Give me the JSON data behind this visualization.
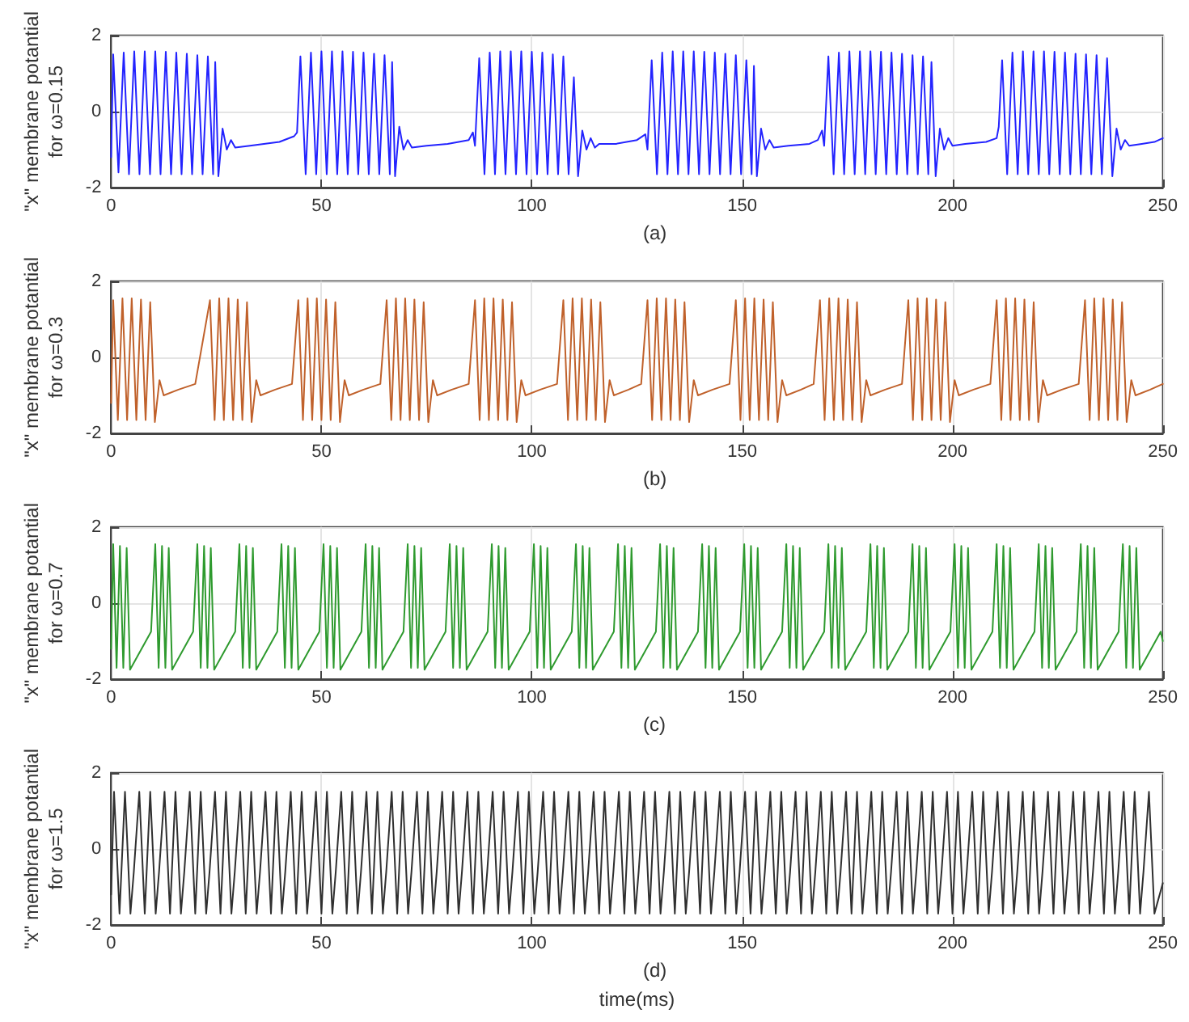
{
  "chart_data": [
    {
      "type": "line",
      "ylabel": "\"x\" membrane potantial\nfor ω=0.15",
      "annotations": [
        "(a)"
      ],
      "color": "#2323ff",
      "xlim": [
        0,
        250
      ],
      "ylim": [
        -2,
        2
      ],
      "xticks": [
        0,
        50,
        100,
        150,
        200,
        250
      ],
      "yticks": [
        -2,
        0,
        2
      ],
      "grid": true,
      "x": [
        0,
        0.5,
        1.75,
        3,
        4.25,
        5.5,
        6.75,
        8,
        9.25,
        10.5,
        11.75,
        13,
        14.25,
        15.5,
        16.75,
        18,
        19.25,
        20.5,
        21.75,
        23,
        24.25,
        24.75,
        25.5,
        26.5,
        27.5,
        28.5,
        29.5,
        33,
        40,
        43.5,
        44.2,
        45,
        46.25,
        47.5,
        48.75,
        50,
        51.25,
        52.5,
        53.75,
        55,
        56.25,
        57.5,
        58.75,
        60,
        61.25,
        62.5,
        63.75,
        65,
        66.25,
        66.8,
        67.5,
        68.5,
        69.5,
        70.5,
        71.5,
        75,
        80,
        85,
        86,
        86.5,
        87.5,
        88.75,
        90,
        91.25,
        92.5,
        93.75,
        95,
        96.25,
        97.5,
        98.75,
        100,
        101.25,
        102.5,
        103.75,
        105,
        106.25,
        107.5,
        108.75,
        110,
        111,
        112,
        113,
        114,
        115,
        116,
        120,
        125,
        127,
        127.5,
        128.5,
        129.75,
        131,
        132.25,
        133.5,
        134.75,
        136,
        137.25,
        138.5,
        139.75,
        141,
        142.25,
        143.5,
        144.75,
        146,
        147.25,
        148.5,
        149.75,
        151,
        152.25,
        152.8,
        153.5,
        154.5,
        155.5,
        156.5,
        157.5,
        161,
        166,
        168,
        169,
        169.5,
        170.5,
        171.75,
        173,
        174.25,
        175.5,
        176.75,
        178,
        179.25,
        180.5,
        181.75,
        183,
        184.25,
        185.5,
        186.75,
        188,
        189.25,
        190.5,
        191.75,
        193,
        194.25,
        195,
        196,
        197,
        198,
        199,
        200,
        203,
        208,
        210.5,
        211,
        211.8,
        213,
        214.25,
        215.5,
        216.75,
        218,
        219.25,
        220.5,
        221.75,
        223,
        224.25,
        225.5,
        226.75,
        228,
        229.25,
        230.5,
        231.75,
        233,
        234.25,
        235.5,
        236.75,
        238,
        239,
        240,
        241,
        242,
        245,
        248,
        250
      ],
      "values": [
        -1.2,
        1.5,
        -1.6,
        1.55,
        -1.65,
        1.58,
        -1.65,
        1.58,
        -1.65,
        1.58,
        -1.65,
        1.57,
        -1.65,
        1.55,
        -1.65,
        1.52,
        -1.65,
        1.48,
        -1.65,
        1.45,
        -1.65,
        1.3,
        -1.7,
        -0.45,
        -1.0,
        -0.75,
        -0.95,
        -0.9,
        -0.8,
        -0.65,
        -0.55,
        1.45,
        -1.65,
        1.55,
        -1.65,
        1.58,
        -1.65,
        1.58,
        -1.65,
        1.58,
        -1.65,
        1.57,
        -1.65,
        1.55,
        -1.65,
        1.52,
        -1.65,
        1.48,
        -1.65,
        1.3,
        -1.7,
        -0.4,
        -1.0,
        -0.75,
        -0.95,
        -0.9,
        -0.85,
        -0.75,
        -0.55,
        -0.9,
        1.4,
        -1.65,
        1.55,
        -1.65,
        1.58,
        -1.65,
        1.58,
        -1.65,
        1.58,
        -1.65,
        1.57,
        -1.65,
        1.55,
        -1.65,
        1.5,
        -1.65,
        1.45,
        -1.65,
        0.9,
        -1.7,
        -0.5,
        -1.0,
        -0.7,
        -0.95,
        -0.85,
        -0.85,
        -0.75,
        -0.6,
        -1.0,
        1.35,
        -1.65,
        1.55,
        -1.65,
        1.58,
        -1.65,
        1.58,
        -1.65,
        1.58,
        -1.65,
        1.57,
        -1.65,
        1.55,
        -1.65,
        1.52,
        -1.65,
        1.48,
        -1.65,
        1.35,
        -1.65,
        1.2,
        -1.7,
        -0.45,
        -1.0,
        -0.75,
        -0.95,
        -0.9,
        -0.85,
        -0.75,
        -0.5,
        -0.9,
        1.45,
        -1.65,
        1.55,
        -1.65,
        1.58,
        -1.65,
        1.58,
        -1.65,
        1.58,
        -1.65,
        1.57,
        -1.65,
        1.55,
        -1.65,
        1.52,
        -1.65,
        1.48,
        -1.65,
        1.45,
        -1.65,
        1.3,
        -1.7,
        -0.45,
        -1.0,
        -0.7,
        -0.9,
        -0.85,
        -0.8,
        -0.7,
        -0.4,
        1.35,
        -1.65,
        1.55,
        -1.65,
        1.58,
        -1.65,
        1.58,
        -1.65,
        1.58,
        -1.65,
        1.57,
        -1.65,
        1.55,
        -1.65,
        1.52,
        -1.65,
        1.5,
        -1.65,
        1.48,
        -1.65,
        1.4,
        -1.7,
        -0.45,
        -1.0,
        -0.75,
        -0.9,
        -0.85,
        -0.8,
        -0.7
      ]
    },
    {
      "type": "line",
      "ylabel": "\"x\" membrane potantial\nfor ω=0.3",
      "annotations": [
        "(b)"
      ],
      "color": "#c0612b",
      "xlim": [
        0,
        250
      ],
      "ylim": [
        -2,
        2
      ],
      "xticks": [
        0,
        50,
        100,
        150,
        200,
        250
      ],
      "yticks": [
        -2,
        0,
        2
      ],
      "grid": true,
      "x": [
        0,
        0.5,
        1.6,
        2.7,
        3.8,
        4.9,
        6,
        7.1,
        8.2,
        9.3,
        10.4,
        11.5,
        12.5,
        16,
        20,
        23.5,
        24.6,
        25.7,
        26.8,
        27.9,
        29,
        30.1,
        31.2,
        32.3,
        33.4,
        34.5,
        35.5,
        39,
        43,
        44.5,
        45.6,
        46.7,
        47.8,
        48.9,
        50,
        51.1,
        52.2,
        53.3,
        54.4,
        55.5,
        56.5,
        60,
        64,
        65.5,
        66.6,
        67.7,
        68.8,
        69.9,
        71,
        72.1,
        73.2,
        74.3,
        75.4,
        76.5,
        77.5,
        81,
        85,
        86.5,
        87.6,
        88.7,
        89.8,
        90.9,
        92,
        93.1,
        94.2,
        95.3,
        96.4,
        97.5,
        98.5,
        102,
        106,
        107.5,
        108.6,
        109.7,
        110.8,
        111.9,
        113,
        114.1,
        115.2,
        116.3,
        117.4,
        118.5,
        119.5,
        123,
        126,
        127.5,
        128.6,
        129.7,
        130.8,
        131.9,
        133,
        134.1,
        135.2,
        136.3,
        137.4,
        138.5,
        139.5,
        143,
        147,
        148.5,
        149.6,
        150.7,
        151.8,
        152.9,
        154,
        155.1,
        156.2,
        157.3,
        158.4,
        159.5,
        160.5,
        164,
        167,
        168.5,
        169.6,
        170.7,
        171.8,
        172.9,
        174,
        175.1,
        176.2,
        177.3,
        178.4,
        179.5,
        180.5,
        184,
        188,
        189.5,
        190.6,
        191.7,
        192.8,
        193.9,
        195,
        196.1,
        197.2,
        198.3,
        199.4,
        200.5,
        201.5,
        205,
        209,
        210.5,
        211.6,
        212.7,
        213.8,
        214.9,
        216,
        217.1,
        218.2,
        219.3,
        220.4,
        221.5,
        222.5,
        226,
        230,
        231.5,
        232.6,
        233.7,
        234.8,
        235.9,
        237,
        238.1,
        239.2,
        240.3,
        241.4,
        242.5,
        243.5,
        247,
        250
      ],
      "values": [
        -1.2,
        1.5,
        -1.65,
        1.55,
        -1.65,
        1.55,
        -1.65,
        1.52,
        -1.65,
        1.45,
        -1.7,
        -0.6,
        -1.0,
        -0.85,
        -0.7,
        1.5,
        -1.65,
        1.55,
        -1.65,
        1.55,
        -1.65,
        1.52,
        -1.65,
        1.45,
        -1.7,
        -0.6,
        -1.0,
        -0.85,
        -0.7,
        1.5,
        -1.65,
        1.55,
        -1.65,
        1.55,
        -1.65,
        1.52,
        -1.65,
        1.45,
        -1.7,
        -0.6,
        -1.0,
        -0.85,
        -0.7,
        1.5,
        -1.65,
        1.55,
        -1.65,
        1.55,
        -1.65,
        1.52,
        -1.65,
        1.45,
        -1.7,
        -0.6,
        -1.0,
        -0.85,
        -0.7,
        1.5,
        -1.65,
        1.55,
        -1.65,
        1.55,
        -1.65,
        1.52,
        -1.65,
        1.45,
        -1.7,
        -0.6,
        -1.0,
        -0.85,
        -0.7,
        1.5,
        -1.65,
        1.55,
        -1.65,
        1.55,
        -1.65,
        1.52,
        -1.65,
        1.45,
        -1.7,
        -0.6,
        -1.0,
        -0.85,
        -0.7,
        1.5,
        -1.65,
        1.55,
        -1.65,
        1.55,
        -1.65,
        1.52,
        -1.65,
        1.45,
        -1.7,
        -0.6,
        -1.0,
        -0.85,
        -0.7,
        1.5,
        -1.65,
        1.55,
        -1.65,
        1.55,
        -1.65,
        1.52,
        -1.65,
        1.45,
        -1.7,
        -0.6,
        -1.0,
        -0.85,
        -0.7,
        1.5,
        -1.65,
        1.55,
        -1.65,
        1.55,
        -1.65,
        1.52,
        -1.65,
        1.45,
        -1.7,
        -0.6,
        -1.0,
        -0.85,
        -0.7,
        1.5,
        -1.65,
        1.55,
        -1.65,
        1.55,
        -1.65,
        1.52,
        -1.65,
        1.45,
        -1.7,
        -0.6,
        -1.0,
        -0.85,
        -0.7,
        1.5,
        -1.65,
        1.55,
        -1.65,
        1.55,
        -1.65,
        1.52,
        -1.65,
        1.45,
        -1.7,
        -0.6,
        -1.0,
        -0.85,
        -0.7,
        1.5,
        -1.65,
        1.55,
        -1.65,
        1.55,
        -1.65,
        1.52,
        -1.65,
        1.45,
        -1.7,
        -0.6,
        -1.0,
        -0.85,
        -0.7
      ]
    },
    {
      "type": "line",
      "ylabel": "\"x\" membrane potantial\nfor ω=0.7",
      "annotations": [
        "(c)"
      ],
      "color": "#2e9a2e",
      "xlim": [
        0,
        250
      ],
      "ylim": [
        -2,
        2
      ],
      "xticks": [
        0,
        50,
        100,
        150,
        200,
        250
      ],
      "yticks": [
        -2,
        0,
        2
      ],
      "grid": true,
      "x": [
        0,
        0.5,
        1.3,
        2.1,
        2.9,
        3.7,
        4.5,
        9.5,
        10.5,
        11.3,
        12.1,
        12.9,
        13.7,
        14.5,
        19.5,
        20.5,
        21.3,
        22.1,
        22.9,
        23.7,
        24.5,
        29.5,
        30.5,
        31.3,
        32.1,
        32.9,
        33.7,
        34.5,
        39.5,
        40.5,
        41.3,
        42.1,
        42.9,
        43.7,
        44.5,
        49.5,
        50.5,
        51.3,
        52.1,
        52.9,
        53.7,
        54.5,
        59.5,
        60.5,
        61.3,
        62.1,
        62.9,
        63.7,
        64.5,
        69.5,
        70.5,
        71.3,
        72.1,
        72.9,
        73.7,
        74.5,
        79.5,
        80.5,
        81.3,
        82.1,
        82.9,
        83.7,
        84.5,
        89.5,
        90.5,
        91.3,
        92.1,
        92.9,
        93.7,
        94.5,
        99.5,
        100.5,
        101.3,
        102.1,
        102.9,
        103.7,
        104.5,
        109.5,
        110.5,
        111.3,
        112.1,
        112.9,
        113.7,
        114.5,
        119.5,
        120.5,
        121.3,
        122.1,
        122.9,
        123.7,
        124.5,
        129.5,
        130.5,
        131.3,
        132.1,
        132.9,
        133.7,
        134.5,
        139.5,
        140.5,
        141.3,
        142.1,
        142.9,
        143.7,
        144.5,
        149.5,
        150.5,
        151.3,
        152.1,
        152.9,
        153.7,
        154.5,
        159.5,
        160.5,
        161.3,
        162.1,
        162.9,
        163.7,
        164.5,
        169.5,
        170.5,
        171.3,
        172.1,
        172.9,
        173.7,
        174.5,
        179.5,
        180.5,
        181.3,
        182.1,
        182.9,
        183.7,
        184.5,
        189.5,
        190.5,
        191.3,
        192.1,
        192.9,
        193.7,
        194.5,
        199.5,
        200.5,
        201.3,
        202.1,
        202.9,
        203.7,
        204.5,
        209.5,
        210.5,
        211.3,
        212.1,
        212.9,
        213.7,
        214.5,
        219.5,
        220.5,
        221.3,
        222.1,
        222.9,
        223.7,
        224.5,
        229.5,
        230.5,
        231.3,
        232.1,
        232.9,
        233.7,
        234.5,
        239.5,
        240.5,
        241.3,
        242.1,
        242.9,
        243.7,
        244.5,
        249.5,
        250
      ],
      "values": [
        -1.2,
        1.55,
        -1.7,
        1.5,
        -1.7,
        1.45,
        -1.75,
        -0.75,
        1.55,
        -1.7,
        1.5,
        -1.7,
        1.45,
        -1.75,
        -0.75,
        1.55,
        -1.7,
        1.5,
        -1.7,
        1.45,
        -1.75,
        -0.75,
        1.55,
        -1.7,
        1.5,
        -1.7,
        1.45,
        -1.75,
        -0.75,
        1.55,
        -1.7,
        1.5,
        -1.7,
        1.45,
        -1.75,
        -0.75,
        1.55,
        -1.7,
        1.5,
        -1.7,
        1.45,
        -1.75,
        -0.75,
        1.55,
        -1.7,
        1.5,
        -1.7,
        1.45,
        -1.75,
        -0.75,
        1.55,
        -1.7,
        1.5,
        -1.7,
        1.45,
        -1.75,
        -0.75,
        1.55,
        -1.7,
        1.5,
        -1.7,
        1.45,
        -1.75,
        -0.75,
        1.55,
        -1.7,
        1.5,
        -1.7,
        1.45,
        -1.75,
        -0.75,
        1.55,
        -1.7,
        1.5,
        -1.7,
        1.45,
        -1.75,
        -0.75,
        1.55,
        -1.7,
        1.5,
        -1.7,
        1.45,
        -1.75,
        -0.75,
        1.55,
        -1.7,
        1.5,
        -1.7,
        1.45,
        -1.75,
        -0.75,
        1.55,
        -1.7,
        1.5,
        -1.7,
        1.45,
        -1.75,
        -0.75,
        1.55,
        -1.7,
        1.5,
        -1.7,
        1.45,
        -1.75,
        -0.75,
        1.55,
        -1.7,
        1.5,
        -1.7,
        1.45,
        -1.75,
        -0.75,
        1.55,
        -1.7,
        1.5,
        -1.7,
        1.45,
        -1.75,
        -0.75,
        1.55,
        -1.7,
        1.5,
        -1.7,
        1.45,
        -1.75,
        -0.75,
        1.55,
        -1.7,
        1.5,
        -1.7,
        1.45,
        -1.75,
        -0.75,
        1.55,
        -1.7,
        1.5,
        -1.7,
        1.45,
        -1.75,
        -0.75,
        1.55,
        -1.7,
        1.5,
        -1.7,
        1.45,
        -1.75,
        -0.75,
        1.55,
        -1.7,
        1.5,
        -1.7,
        1.45,
        -1.75,
        -0.75,
        1.55,
        -1.7,
        1.5,
        -1.7,
        1.45,
        -1.75,
        -0.75,
        1.55,
        -1.7,
        1.5,
        -1.7,
        1.45,
        -1.75,
        -0.75,
        1.55,
        -1.7,
        1.5,
        -1.7,
        1.45,
        -1.75,
        -0.75,
        -1.0
      ]
    },
    {
      "type": "line",
      "xlabel": "time(ms)",
      "ylabel": "\"x\" membrane potantial\nfor ω=1.5",
      "annotations": [
        "(d)"
      ],
      "color": "#303030",
      "xlim": [
        0,
        250
      ],
      "ylim": [
        -2,
        2
      ],
      "xticks": [
        0,
        50,
        100,
        150,
        200,
        250
      ],
      "yticks": [
        -2,
        0,
        2
      ],
      "grid": true,
      "x": [
        0,
        0.7,
        2,
        3.3,
        4.6,
        5.4,
        6.7,
        8,
        9.3,
        10.6,
        11.4,
        12.7,
        14,
        15.3,
        16.6,
        17.4,
        18.7,
        20,
        21.3,
        22.6,
        23.4,
        24.7,
        26,
        27.3,
        28.6,
        29.4,
        30.7,
        32,
        33.3,
        34.6,
        35.4,
        36.7,
        38,
        39.3,
        40.6,
        41.4,
        42.7,
        44,
        45.3,
        46.6,
        47.4,
        48.7,
        50,
        51.3,
        52.6,
        53.4,
        54.7,
        56,
        57.3,
        58.6,
        59.4,
        60.7,
        62,
        63.3,
        64.6,
        65.4,
        66.7,
        68,
        69.3,
        70.6,
        71.4,
        72.7,
        74,
        75.3,
        76.6,
        77.4,
        78.7,
        80,
        81.3,
        82.6,
        83.4,
        84.7,
        86,
        87.3,
        88.6,
        89.4,
        90.7,
        92,
        93.3,
        94.6,
        95.4,
        96.7,
        98,
        99.3,
        100.6,
        101.4,
        102.7,
        104,
        105.3,
        106.6,
        107.4,
        108.7,
        110,
        111.3,
        112.6,
        113.4,
        114.7,
        116,
        117.3,
        118.6,
        119.4,
        120.7,
        122,
        123.3,
        124.6,
        125.4,
        126.7,
        128,
        129.3,
        130.6,
        131.4,
        132.7,
        134,
        135.3,
        136.6,
        137.4,
        138.7,
        140,
        141.3,
        142.6,
        143.4,
        144.7,
        146,
        147.3,
        148.6,
        149.4,
        150.7,
        152,
        153.3,
        154.6,
        155.4,
        156.7,
        158,
        159.3,
        160.6,
        161.4,
        162.7,
        164,
        165.3,
        166.6,
        167.4,
        168.7,
        170,
        171.3,
        172.6,
        173.4,
        174.7,
        176,
        177.3,
        178.6,
        179.4,
        180.7,
        182,
        183.3,
        184.6,
        185.4,
        186.7,
        188,
        189.3,
        190.6,
        191.4,
        192.7,
        194,
        195.3,
        196.6,
        197.4,
        198.7,
        200,
        201.3,
        202.6,
        203.4,
        204.7,
        206,
        207.3,
        208.6,
        209.4,
        210.7,
        212,
        213.3,
        214.6,
        215.4,
        216.7,
        218,
        219.3,
        220.6,
        221.4,
        222.7,
        224,
        225.3,
        226.6,
        227.4,
        228.7,
        230,
        231.3,
        232.6,
        233.4,
        234.7,
        236,
        237.3,
        238.6,
        239.4,
        240.7,
        242,
        243.3,
        244.6,
        245.4,
        246.7,
        248,
        250
      ],
      "values": [
        -1.2,
        1.5,
        -1.7,
        1.5,
        -1.7,
        -0.6,
        1.5,
        -1.7,
        1.5,
        -1.7,
        -0.6,
        1.5,
        -1.7,
        1.5,
        -1.7,
        -0.6,
        1.5,
        -1.7,
        1.5,
        -1.7,
        -0.6,
        1.5,
        -1.7,
        1.5,
        -1.7,
        -0.6,
        1.5,
        -1.7,
        1.5,
        -1.7,
        -0.6,
        1.5,
        -1.7,
        1.5,
        -1.7,
        -0.6,
        1.5,
        -1.7,
        1.5,
        -1.7,
        -0.6,
        1.5,
        -1.7,
        1.5,
        -1.7,
        -0.6,
        1.5,
        -1.7,
        1.5,
        -1.7,
        -0.6,
        1.5,
        -1.7,
        1.5,
        -1.7,
        -0.6,
        1.5,
        -1.7,
        1.5,
        -1.7,
        -0.6,
        1.5,
        -1.7,
        1.5,
        -1.7,
        -0.6,
        1.5,
        -1.7,
        1.5,
        -1.7,
        -0.6,
        1.5,
        -1.7,
        1.5,
        -1.7,
        -0.6,
        1.5,
        -1.7,
        1.5,
        -1.7,
        -0.6,
        1.5,
        -1.7,
        1.5,
        -1.7,
        -0.6,
        1.5,
        -1.7,
        1.5,
        -1.7,
        -0.6,
        1.5,
        -1.7,
        1.5,
        -1.7,
        -0.6,
        1.5,
        -1.7,
        1.5,
        -1.7,
        -0.6,
        1.5,
        -1.7,
        1.5,
        -1.7,
        -0.6,
        1.5,
        -1.7,
        1.5,
        -1.7,
        -0.6,
        1.5,
        -1.7,
        1.5,
        -1.7,
        -0.6,
        1.5,
        -1.7,
        1.5,
        -1.7,
        -0.6,
        1.5,
        -1.7,
        1.5,
        -1.7,
        -0.6,
        1.5,
        -1.7,
        1.5,
        -1.7,
        -0.6,
        1.5,
        -1.7,
        1.5,
        -1.7,
        -0.6,
        1.5,
        -1.7,
        1.5,
        -1.7,
        -0.6,
        1.5,
        -1.7,
        1.5,
        -1.7,
        -0.6,
        1.5,
        -1.7,
        1.5,
        -1.7,
        -0.6,
        1.5,
        -1.7,
        1.5,
        -1.7,
        -0.6,
        1.5,
        -1.7,
        1.5,
        -1.7,
        -0.6,
        1.5,
        -1.7,
        1.5,
        -1.7,
        -0.6,
        1.5,
        -1.7,
        1.5,
        -1.7,
        -0.6,
        1.5,
        -1.7,
        1.5,
        -1.7,
        -0.6,
        1.5,
        -1.7,
        1.5,
        -1.7,
        -0.6,
        1.5,
        -1.7,
        1.5,
        -1.7,
        -0.6,
        1.5,
        -1.7,
        1.5,
        -1.7,
        -0.6,
        1.5,
        -1.7,
        1.5,
        -1.7,
        -0.6,
        1.5,
        -1.7,
        1.5,
        -1.7,
        -0.6,
        1.5,
        -1.7,
        1.5,
        -1.7,
        -0.6,
        1.5,
        -1.7,
        -0.9
      ]
    }
  ]
}
